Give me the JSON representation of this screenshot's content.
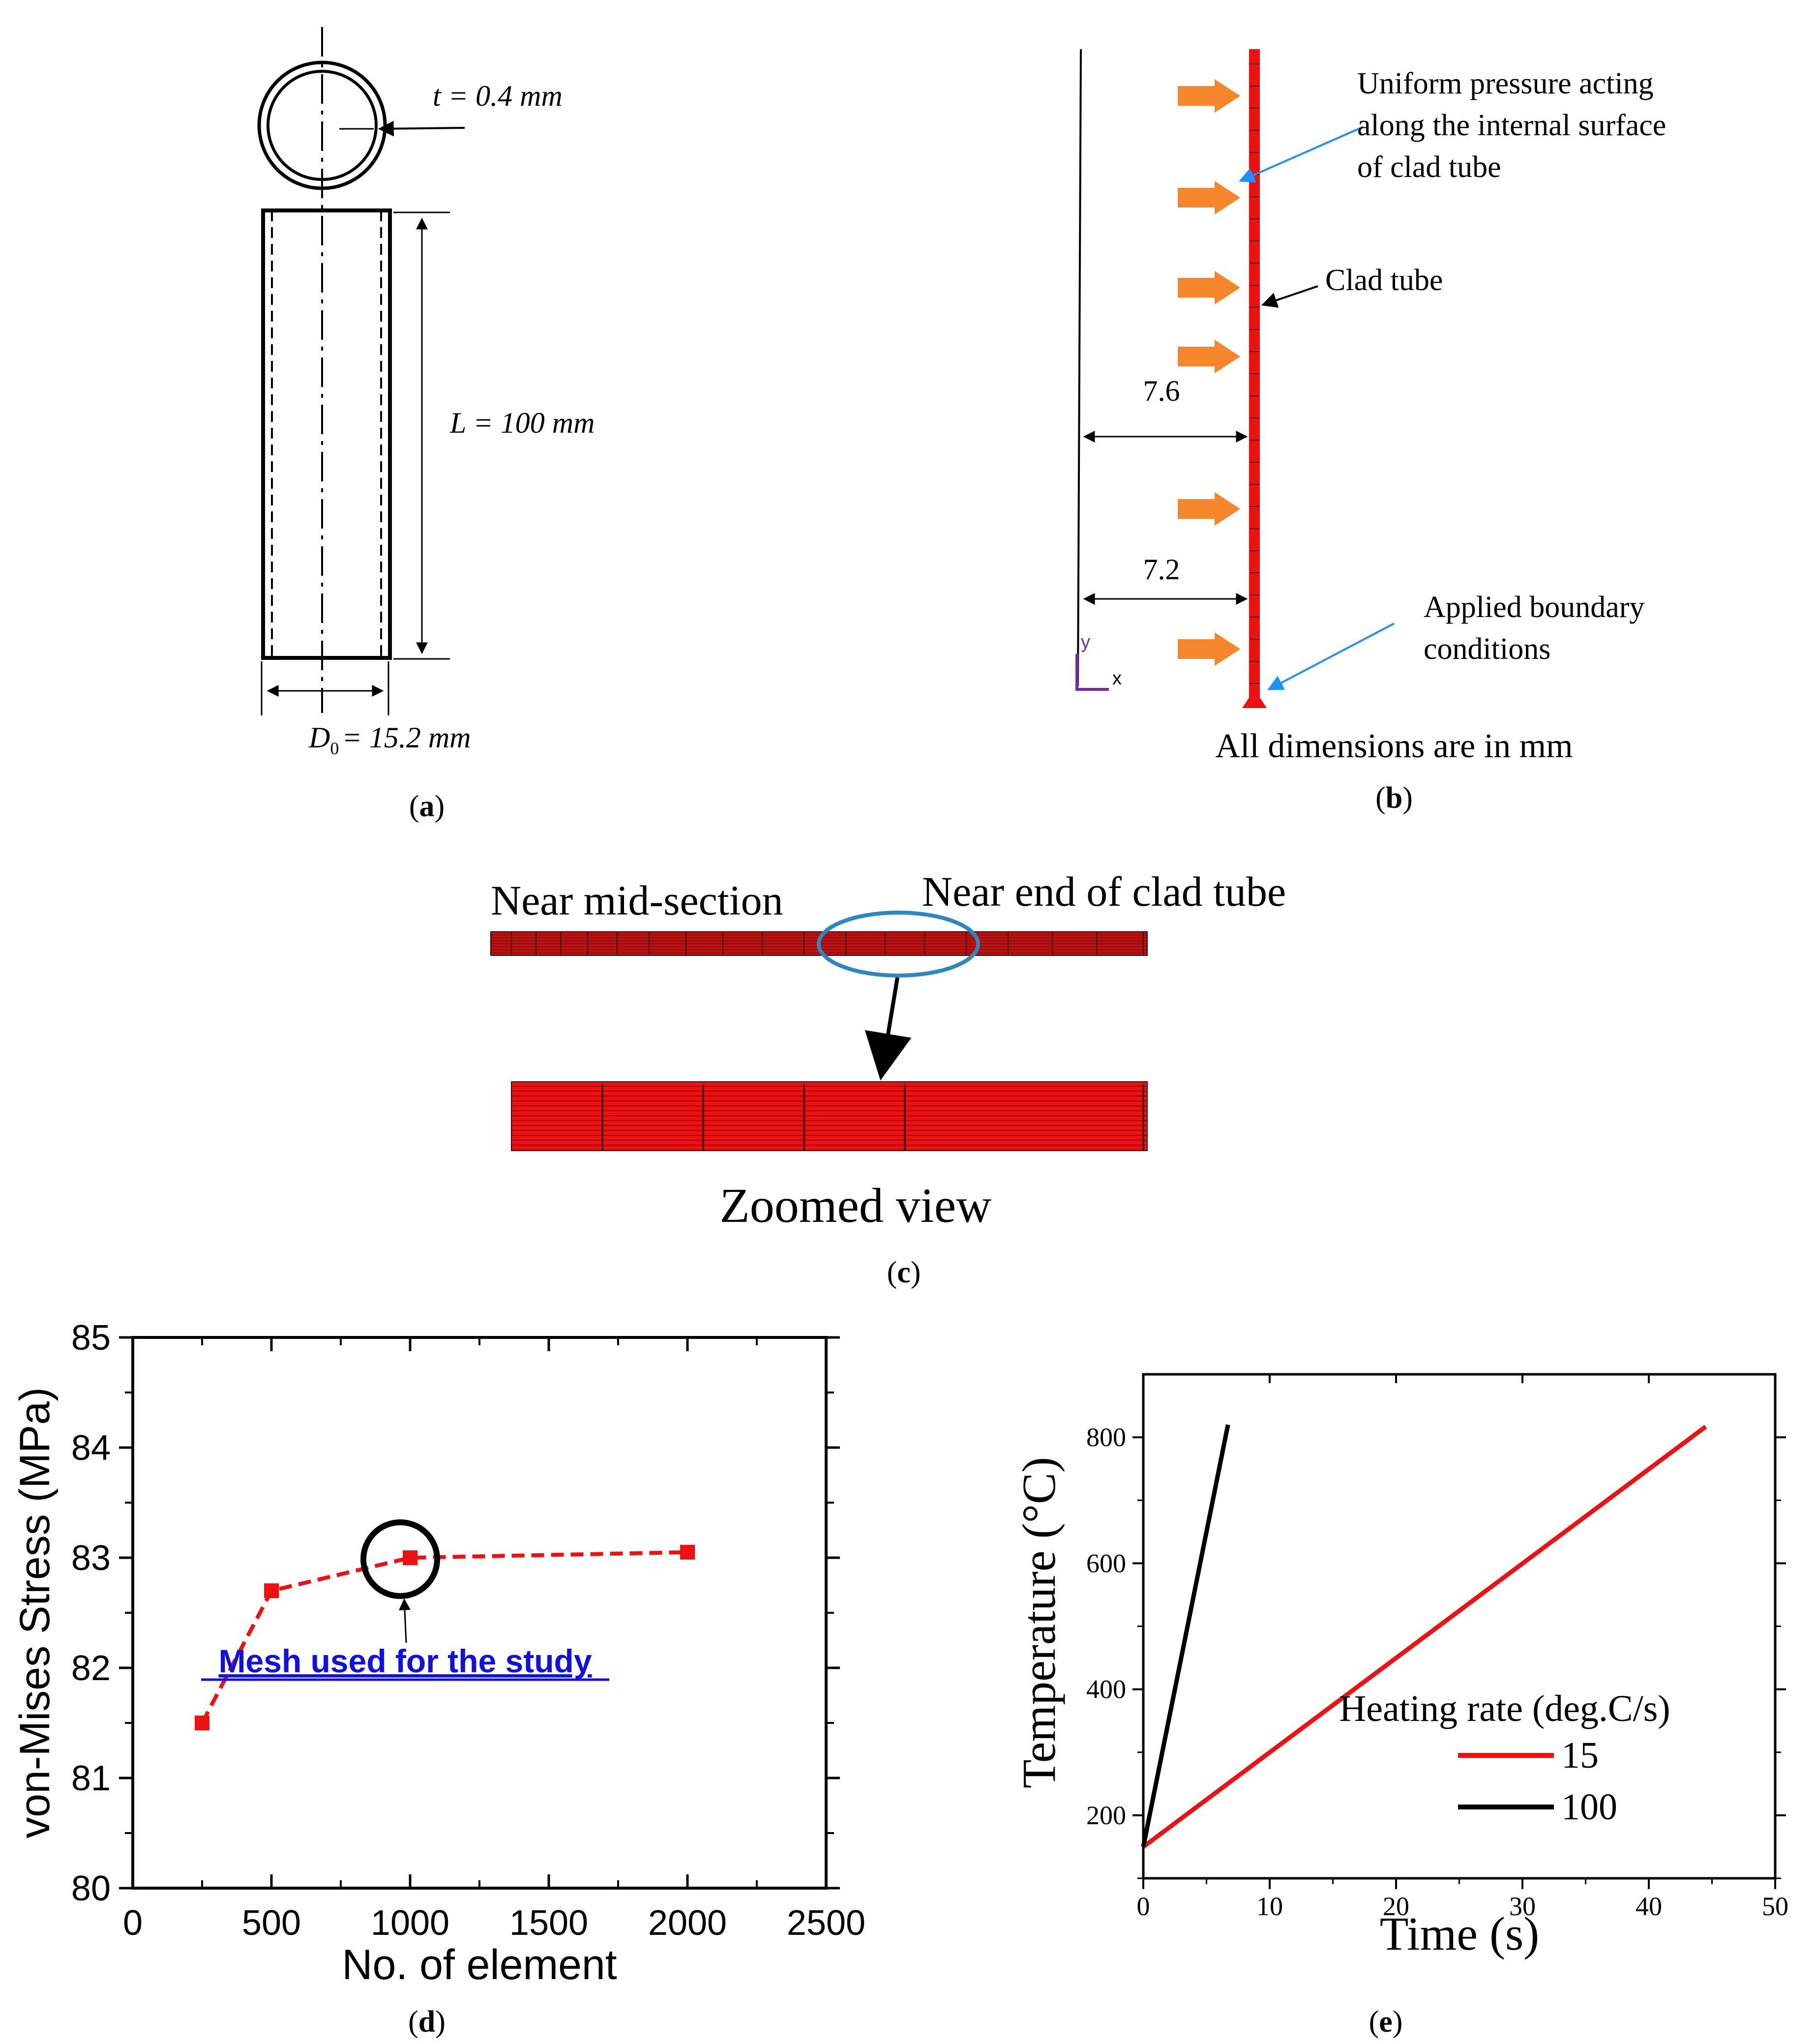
{
  "panel_a": {
    "thickness_label": "t = 0.4 mm",
    "length_label": "L = 100 mm",
    "diameter_main": "D",
    "diameter_sub": "0",
    "diameter_value": "= 15.2 mm",
    "caption": "a"
  },
  "panel_b": {
    "pressure_line1": "Uniform pressure acting",
    "pressure_line2": "along the internal surface",
    "pressure_line3": "of clad tube",
    "clad_label": "Clad tube",
    "dim_outer": "7.6",
    "dim_inner": "7.2",
    "bc_line1": "Applied boundary",
    "bc_line2": "conditions",
    "axis_y": "y",
    "axis_x": "x",
    "units_note": "All dimensions are in mm",
    "caption": "b"
  },
  "panel_c": {
    "label_mid": "Near mid-section",
    "label_end": "Near end of clad tube",
    "zoom_label": "Zoomed view",
    "caption": "c"
  },
  "panel_d": {
    "annotation": "Mesh used for the study",
    "caption": "d",
    "colors": {
      "series": "#ee1111",
      "annotation": "#1010e0"
    }
  },
  "panel_e": {
    "legend_title": "Heating rate (deg.C/s)",
    "caption": "e",
    "colors": {
      "rate_15": "#ee1111",
      "rate_100": "#000000"
    }
  },
  "chart_data": [
    {
      "id": "d",
      "type": "line",
      "x": [
        250,
        500,
        1000,
        2000
      ],
      "series": [
        {
          "values": [
            81.5,
            82.7,
            83.0,
            83.05
          ]
        }
      ],
      "xlabel": "No. of element",
      "ylabel": "von-Mises Stress (MPa)",
      "xlim": [
        0,
        2500
      ],
      "ylim": [
        80,
        85
      ],
      "xticks": [
        "0",
        "500",
        "1000",
        "1500",
        "2000",
        "2500"
      ],
      "yticks": [
        "80",
        "81",
        "82",
        "83",
        "84",
        "85"
      ],
      "line_style": "dashed",
      "marker": "square",
      "highlight_x": 1000,
      "grid": false
    },
    {
      "id": "e",
      "type": "line",
      "xlabel": "Time (s)",
      "ylabel": "Temperature (°C)",
      "xlim": [
        0,
        50
      ],
      "ylim": [
        100,
        900
      ],
      "xticks": [
        "0",
        "10",
        "20",
        "30",
        "40",
        "50"
      ],
      "yticks": [
        "200",
        "400",
        "600",
        "800"
      ],
      "series": [
        {
          "name": "15",
          "x": [
            0,
            44.5
          ],
          "values": [
            150,
            817
          ]
        },
        {
          "name": "100",
          "x": [
            0,
            6.7
          ],
          "values": [
            150,
            820
          ]
        }
      ],
      "legend_position": "lower-right",
      "grid": false
    }
  ]
}
